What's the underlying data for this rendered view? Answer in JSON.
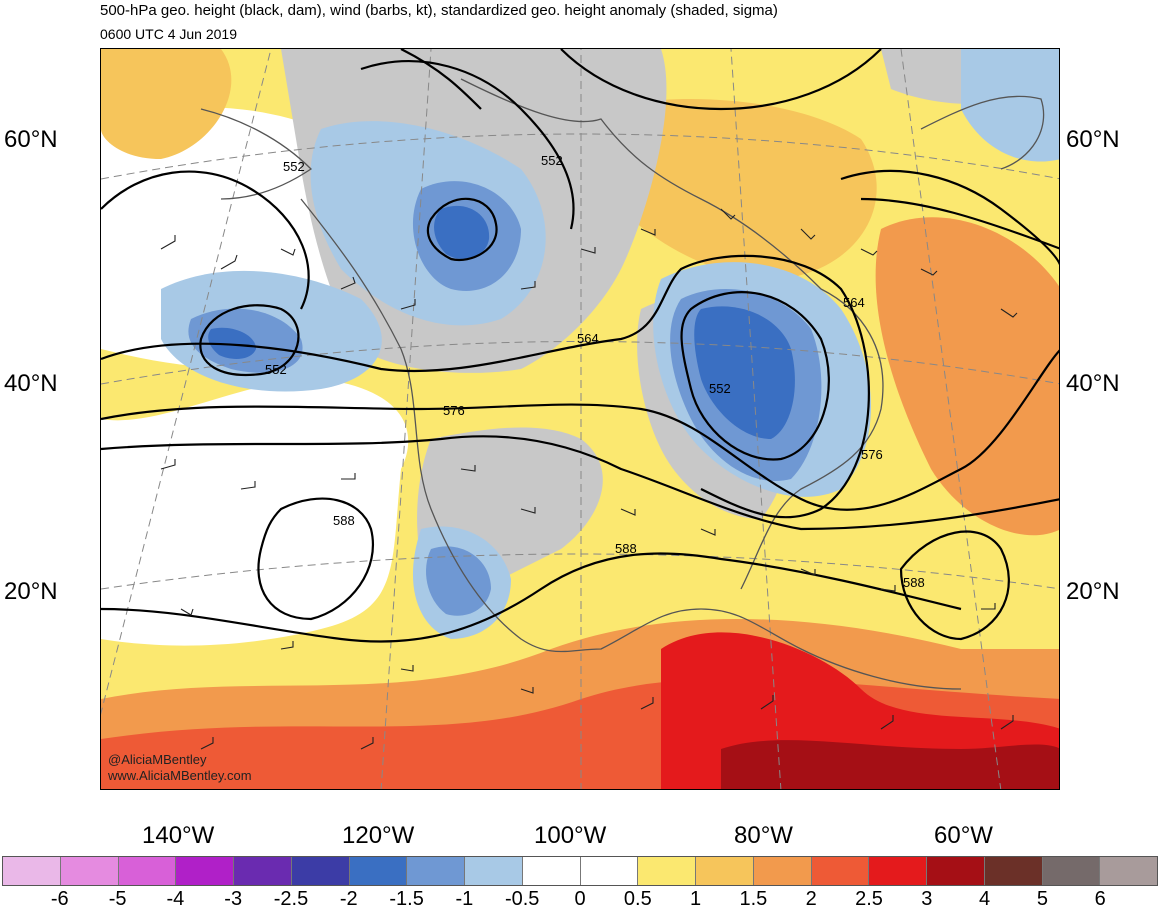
{
  "header": {
    "title": "500-hPa geo. height (black, dam), wind (barbs, kt), standardized geo. height anomaly (shaded, sigma)",
    "valid_time": "0600 UTC 4 Jun 2019"
  },
  "map": {
    "latitude_labels": [
      "60°N",
      "40°N",
      "20°N"
    ],
    "longitude_labels": [
      "140°W",
      "120°W",
      "100°W",
      "80°W",
      "60°W"
    ],
    "contour_labels": [
      "552",
      "552",
      "552",
      "564",
      "552",
      "564",
      "576",
      "576",
      "588",
      "588",
      "588"
    ],
    "credit_handle": "@AliciaMBentley",
    "credit_site": "www.AliciaMBentley.com"
  },
  "colorbar": {
    "labels": [
      "-6",
      "-5",
      "-4",
      "-3",
      "-2.5",
      "-2",
      "-1.5",
      "-1",
      "-0.5",
      "0",
      "0.5",
      "1",
      "1.5",
      "2",
      "2.5",
      "3",
      "4",
      "5",
      "6"
    ],
    "colors": [
      "#eab8e8",
      "#e58be0",
      "#d860d8",
      "#b020c8",
      "#6a2bb0",
      "#3c3ca6",
      "#3a6fc2",
      "#6f98d3",
      "#a8c9e6",
      "#ffffff",
      "#ffffff",
      "#fbe870",
      "#f6c55b",
      "#f29a4d",
      "#ee5a36",
      "#e41a1c",
      "#a50f15",
      "#6b3028",
      "#756a6a",
      "#a89b9b"
    ]
  }
}
